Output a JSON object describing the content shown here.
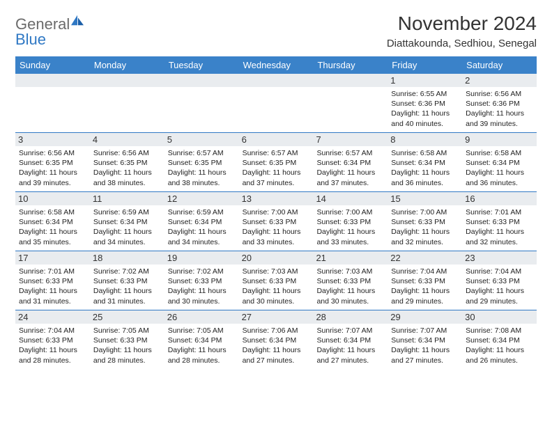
{
  "brand": {
    "name_a": "General",
    "name_b": "Blue"
  },
  "title": "November 2024",
  "location": "Diattakounda, Sedhiou, Senegal",
  "colors": {
    "header_bg": "#3a82c9",
    "date_bg": "#e9ecef",
    "week_border": "#2f78c4",
    "text": "#222222",
    "logo_gray": "#6b6b6b",
    "logo_blue": "#2f78c4"
  },
  "day_names": [
    "Sunday",
    "Monday",
    "Tuesday",
    "Wednesday",
    "Thursday",
    "Friday",
    "Saturday"
  ],
  "weeks": [
    [
      null,
      null,
      null,
      null,
      null,
      {
        "n": "1",
        "sr": "6:55 AM",
        "ss": "6:36 PM",
        "dl": "11 hours and 40 minutes."
      },
      {
        "n": "2",
        "sr": "6:56 AM",
        "ss": "6:36 PM",
        "dl": "11 hours and 39 minutes."
      }
    ],
    [
      {
        "n": "3",
        "sr": "6:56 AM",
        "ss": "6:35 PM",
        "dl": "11 hours and 39 minutes."
      },
      {
        "n": "4",
        "sr": "6:56 AM",
        "ss": "6:35 PM",
        "dl": "11 hours and 38 minutes."
      },
      {
        "n": "5",
        "sr": "6:57 AM",
        "ss": "6:35 PM",
        "dl": "11 hours and 38 minutes."
      },
      {
        "n": "6",
        "sr": "6:57 AM",
        "ss": "6:35 PM",
        "dl": "11 hours and 37 minutes."
      },
      {
        "n": "7",
        "sr": "6:57 AM",
        "ss": "6:34 PM",
        "dl": "11 hours and 37 minutes."
      },
      {
        "n": "8",
        "sr": "6:58 AM",
        "ss": "6:34 PM",
        "dl": "11 hours and 36 minutes."
      },
      {
        "n": "9",
        "sr": "6:58 AM",
        "ss": "6:34 PM",
        "dl": "11 hours and 36 minutes."
      }
    ],
    [
      {
        "n": "10",
        "sr": "6:58 AM",
        "ss": "6:34 PM",
        "dl": "11 hours and 35 minutes."
      },
      {
        "n": "11",
        "sr": "6:59 AM",
        "ss": "6:34 PM",
        "dl": "11 hours and 34 minutes."
      },
      {
        "n": "12",
        "sr": "6:59 AM",
        "ss": "6:34 PM",
        "dl": "11 hours and 34 minutes."
      },
      {
        "n": "13",
        "sr": "7:00 AM",
        "ss": "6:33 PM",
        "dl": "11 hours and 33 minutes."
      },
      {
        "n": "14",
        "sr": "7:00 AM",
        "ss": "6:33 PM",
        "dl": "11 hours and 33 minutes."
      },
      {
        "n": "15",
        "sr": "7:00 AM",
        "ss": "6:33 PM",
        "dl": "11 hours and 32 minutes."
      },
      {
        "n": "16",
        "sr": "7:01 AM",
        "ss": "6:33 PM",
        "dl": "11 hours and 32 minutes."
      }
    ],
    [
      {
        "n": "17",
        "sr": "7:01 AM",
        "ss": "6:33 PM",
        "dl": "11 hours and 31 minutes."
      },
      {
        "n": "18",
        "sr": "7:02 AM",
        "ss": "6:33 PM",
        "dl": "11 hours and 31 minutes."
      },
      {
        "n": "19",
        "sr": "7:02 AM",
        "ss": "6:33 PM",
        "dl": "11 hours and 30 minutes."
      },
      {
        "n": "20",
        "sr": "7:03 AM",
        "ss": "6:33 PM",
        "dl": "11 hours and 30 minutes."
      },
      {
        "n": "21",
        "sr": "7:03 AM",
        "ss": "6:33 PM",
        "dl": "11 hours and 30 minutes."
      },
      {
        "n": "22",
        "sr": "7:04 AM",
        "ss": "6:33 PM",
        "dl": "11 hours and 29 minutes."
      },
      {
        "n": "23",
        "sr": "7:04 AM",
        "ss": "6:33 PM",
        "dl": "11 hours and 29 minutes."
      }
    ],
    [
      {
        "n": "24",
        "sr": "7:04 AM",
        "ss": "6:33 PM",
        "dl": "11 hours and 28 minutes."
      },
      {
        "n": "25",
        "sr": "7:05 AM",
        "ss": "6:33 PM",
        "dl": "11 hours and 28 minutes."
      },
      {
        "n": "26",
        "sr": "7:05 AM",
        "ss": "6:34 PM",
        "dl": "11 hours and 28 minutes."
      },
      {
        "n": "27",
        "sr": "7:06 AM",
        "ss": "6:34 PM",
        "dl": "11 hours and 27 minutes."
      },
      {
        "n": "28",
        "sr": "7:07 AM",
        "ss": "6:34 PM",
        "dl": "11 hours and 27 minutes."
      },
      {
        "n": "29",
        "sr": "7:07 AM",
        "ss": "6:34 PM",
        "dl": "11 hours and 27 minutes."
      },
      {
        "n": "30",
        "sr": "7:08 AM",
        "ss": "6:34 PM",
        "dl": "11 hours and 26 minutes."
      }
    ]
  ],
  "labels": {
    "sunrise": "Sunrise:",
    "sunset": "Sunset:",
    "daylight": "Daylight:"
  }
}
